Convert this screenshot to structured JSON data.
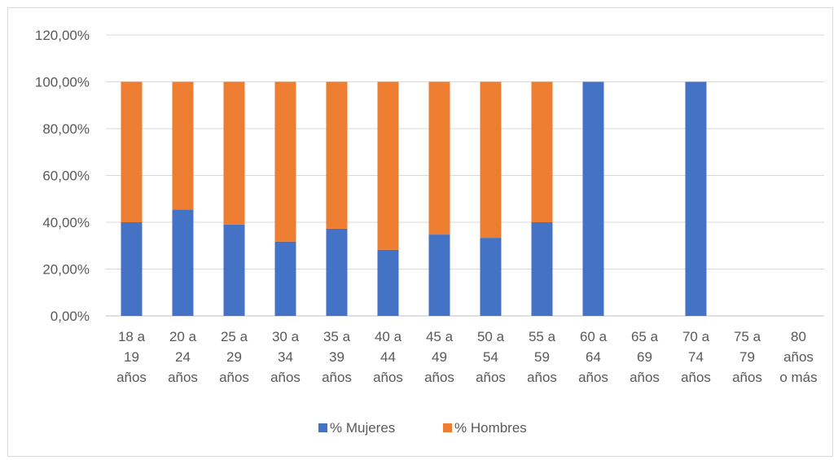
{
  "chart_data": {
    "type": "bar",
    "stacked": true,
    "categories": [
      [
        "18 a",
        "19",
        "años"
      ],
      [
        "20 a",
        "24",
        "años"
      ],
      [
        "25 a",
        "29",
        "años"
      ],
      [
        "30 a",
        "34",
        "años"
      ],
      [
        "35 a",
        "39",
        "años"
      ],
      [
        "40 a",
        "44",
        "años"
      ],
      [
        "45 a",
        "49",
        "años"
      ],
      [
        "50 a",
        "54",
        "años"
      ],
      [
        "55 a",
        "59",
        "años"
      ],
      [
        "60 a",
        "64",
        "años"
      ],
      [
        "65 a",
        "69",
        "años"
      ],
      [
        "70 a",
        "74",
        "años"
      ],
      [
        "75 a",
        "79",
        "años"
      ],
      [
        "80",
        "años",
        "o más"
      ]
    ],
    "series": [
      {
        "name": "% Mujeres",
        "color": "#4472c4",
        "values": [
          0.4,
          0.4545,
          0.39,
          0.3175,
          0.3725,
          0.2825,
          0.3475,
          0.3335,
          0.4,
          1.0,
          0,
          1.0,
          0,
          0
        ]
      },
      {
        "name": "% Hombres",
        "color": "#ed7d31",
        "values": [
          0.6,
          0.5455,
          0.61,
          0.6825,
          0.6275,
          0.7175,
          0.6525,
          0.6665,
          0.6,
          0,
          0,
          0,
          0,
          0
        ]
      }
    ],
    "yticks": [
      "0,00%",
      "20,00%",
      "40,00%",
      "60,00%",
      "80,00%",
      "100,00%",
      "120,00%"
    ],
    "ylim": [
      0,
      1.2
    ],
    "grid": true,
    "legend_position": "bottom",
    "title": "",
    "xlabel": "",
    "ylabel": ""
  }
}
